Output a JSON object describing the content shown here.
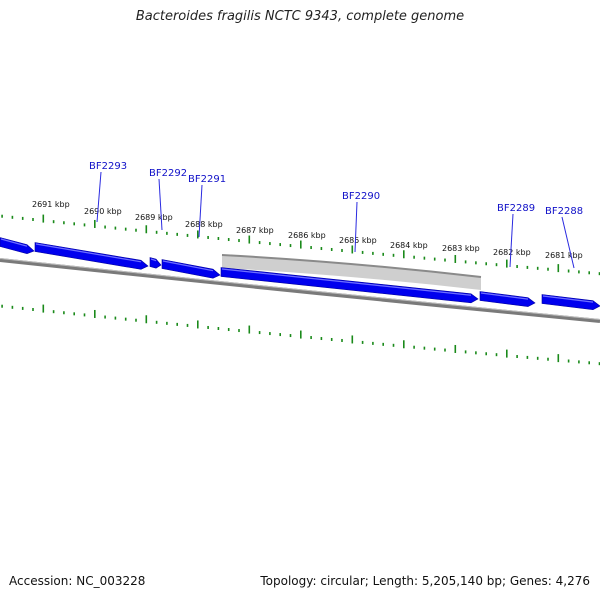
{
  "title": "Bacteroides fragilis NCTC 9343, complete genome",
  "footer": {
    "accession": "Accession: NC_003228",
    "summary": "Topology: circular; Length: 5,205,140 bp; Genes: 4,276"
  },
  "colors": {
    "gene": "#0000ee",
    "gene_highlight": "#6f6fff",
    "tick": "#1a8a1a",
    "backbone": "#777777",
    "region": "#c8c8c8"
  },
  "kbp_labels": [
    "2691 kbp",
    "2690 kbp",
    "2689 kbp",
    "2688 kbp",
    "2687 kbp",
    "2686 kbp",
    "2685 kbp",
    "2684 kbp",
    "2683 kbp",
    "2682 kbp",
    "2681 kbp"
  ],
  "genes": [
    {
      "label": ""
    },
    {
      "label": "BF2293"
    },
    {
      "label": "BF2292"
    },
    {
      "label": "BF2291"
    },
    {
      "label": "BF2290"
    },
    {
      "label": "BF2289"
    },
    {
      "label": "BF2288"
    }
  ]
}
